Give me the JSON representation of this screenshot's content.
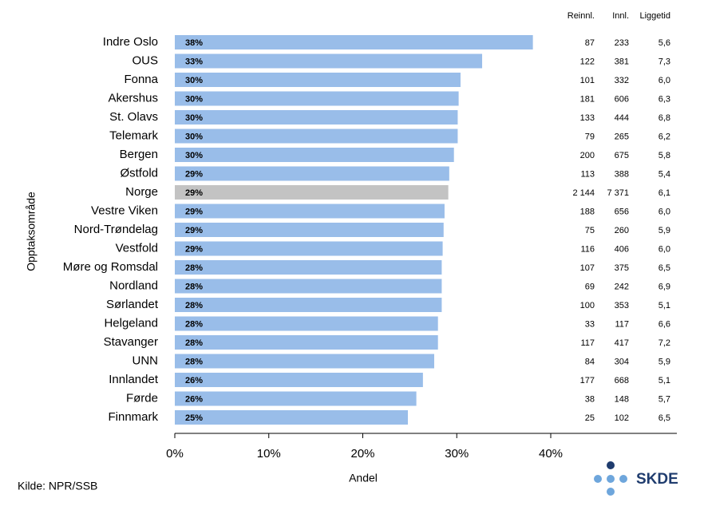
{
  "chart_data": {
    "type": "bar",
    "orientation": "horizontal",
    "y_axis_label": "Opptaksområde",
    "x_axis_label": "Andel",
    "categories": [
      "Indre Oslo",
      "OUS",
      "Fonna",
      "Akershus",
      "St. Olavs",
      "Telemark",
      "Bergen",
      "Østfold",
      "Norge",
      "Vestre Viken",
      "Nord-Trøndelag",
      "Vestfold",
      "Møre og Romsdal",
      "Nordland",
      "Sørlandet",
      "Helgeland",
      "Stavanger",
      "UNN",
      "Innlandet",
      "Førde",
      "Finnmark"
    ],
    "values": [
      38.1,
      32.7,
      30.4,
      30.2,
      30.1,
      30.1,
      29.7,
      29.2,
      29.1,
      28.7,
      28.6,
      28.5,
      28.4,
      28.4,
      28.4,
      28.0,
      28.0,
      27.6,
      26.4,
      25.7,
      24.8
    ],
    "value_labels": [
      "38%",
      "33%",
      "30%",
      "30%",
      "30%",
      "30%",
      "30%",
      "29%",
      "29%",
      "29%",
      "29%",
      "29%",
      "28%",
      "28%",
      "28%",
      "28%",
      "28%",
      "28%",
      "26%",
      "26%",
      "25%"
    ],
    "colors": [
      "#99bde9",
      "#99bde9",
      "#99bde9",
      "#99bde9",
      "#99bde9",
      "#99bde9",
      "#99bde9",
      "#99bde9",
      "#c3c3c3",
      "#99bde9",
      "#99bde9",
      "#99bde9",
      "#99bde9",
      "#99bde9",
      "#99bde9",
      "#99bde9",
      "#99bde9",
      "#99bde9",
      "#99bde9",
      "#99bde9",
      "#99bde9"
    ],
    "xlim": [
      0,
      53.5
    ],
    "xticks": [
      {
        "value": 0,
        "label": "0%"
      },
      {
        "value": 10,
        "label": "10%"
      },
      {
        "value": 20,
        "label": "20%"
      },
      {
        "value": 30,
        "label": "30%"
      },
      {
        "value": 40,
        "label": "40%"
      }
    ]
  },
  "table": {
    "columns": [
      "Reinnl.",
      "Innl.",
      "Liggetid"
    ],
    "rows": [
      [
        "87",
        "233",
        "5,6"
      ],
      [
        "122",
        "381",
        "7,3"
      ],
      [
        "101",
        "332",
        "6,0"
      ],
      [
        "181",
        "606",
        "6,3"
      ],
      [
        "133",
        "444",
        "6,8"
      ],
      [
        "79",
        "265",
        "6,2"
      ],
      [
        "200",
        "675",
        "5,8"
      ],
      [
        "113",
        "388",
        "5,4"
      ],
      [
        "2 144",
        "7 371",
        "6,1"
      ],
      [
        "188",
        "656",
        "6,0"
      ],
      [
        "75",
        "260",
        "5,9"
      ],
      [
        "116",
        "406",
        "6,0"
      ],
      [
        "107",
        "375",
        "6,5"
      ],
      [
        "69",
        "242",
        "6,9"
      ],
      [
        "100",
        "353",
        "5,1"
      ],
      [
        "33",
        "117",
        "6,6"
      ],
      [
        "117",
        "417",
        "7,2"
      ],
      [
        "84",
        "304",
        "5,9"
      ],
      [
        "177",
        "668",
        "5,1"
      ],
      [
        "38",
        "148",
        "5,7"
      ],
      [
        "25",
        "102",
        "6,5"
      ]
    ]
  },
  "source": "Kilde: NPR/SSB",
  "logo": "SKDE"
}
